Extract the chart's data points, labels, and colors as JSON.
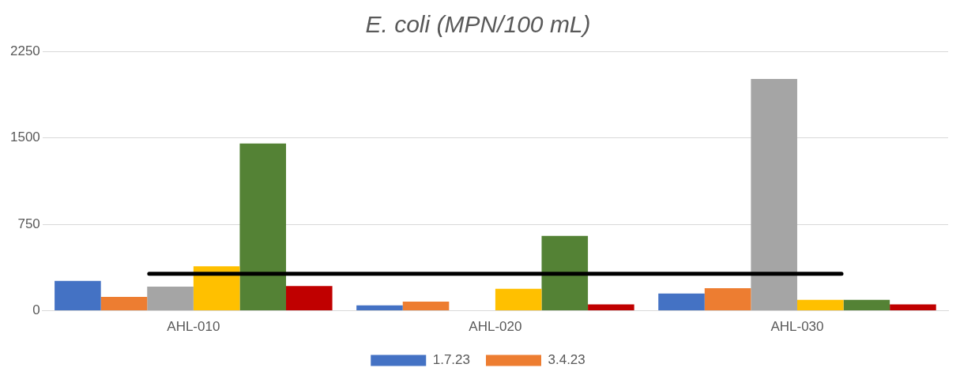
{
  "chart_data": {
    "type": "bar",
    "title": "E. coli (MPN/100 mL)",
    "categories": [
      "AHL-010",
      "AHL-020",
      "AHL-030"
    ],
    "series": [
      {
        "name": "1.7.23",
        "color": "#4472c4",
        "values": [
          260,
          47,
          150
        ]
      },
      {
        "name": "3.4.23",
        "color": "#ed7d31",
        "values": [
          120,
          80,
          195
        ]
      },
      {
        "color": "#a5a5a5",
        "values": [
          210,
          null,
          2010
        ]
      },
      {
        "color": "#ffc000",
        "values": [
          385,
          190,
          95
        ]
      },
      {
        "color": "#548235",
        "values": [
          1450,
          650,
          95
        ]
      },
      {
        "color": "#c00000",
        "values": [
          215,
          55,
          55
        ]
      }
    ],
    "ylim": [
      0,
      2250
    ],
    "yticks": [
      0,
      750,
      1500,
      2250
    ],
    "grid": "y",
    "legend": "bottom",
    "ref_lines": [
      {
        "axis": "y",
        "value": 320,
        "color": "#000000"
      }
    ]
  }
}
